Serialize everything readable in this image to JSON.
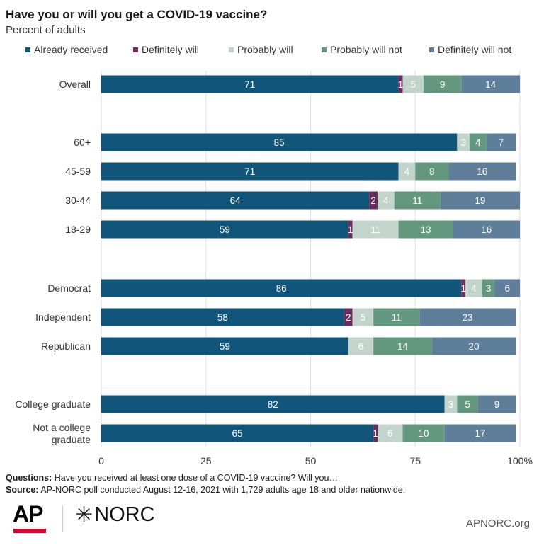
{
  "chart_data": {
    "type": "bar",
    "orientation": "horizontal",
    "stacked": true,
    "title": "Have you or will you get a COVID-19 vaccine?",
    "subtitle": "Percent of adults",
    "legend_position": "top",
    "xlim": [
      0,
      100
    ],
    "x_ticks": [
      "0",
      "25",
      "50",
      "75",
      "100%"
    ],
    "x_tick_values": [
      0,
      25,
      50,
      75,
      100
    ],
    "grid": true,
    "categories": [
      [
        "Overall"
      ],
      [
        "60+"
      ],
      [
        "45-59"
      ],
      [
        "30-44"
      ],
      [
        "18-29"
      ],
      [
        "Democrat"
      ],
      [
        "Independent"
      ],
      [
        "Republican"
      ],
      [
        "College graduate"
      ],
      [
        "Not a college",
        "graduate"
      ]
    ],
    "groups": [
      [
        0
      ],
      [
        1,
        2,
        3,
        4
      ],
      [
        5,
        6,
        7
      ],
      [
        8,
        9
      ]
    ],
    "series": [
      {
        "name": "Already received",
        "color": "#12557a",
        "values": [
          71,
          85,
          71,
          64,
          59,
          86,
          58,
          59,
          82,
          65
        ],
        "labels": [
          "71",
          "85",
          "71",
          "64",
          "59",
          "86",
          "58",
          "59",
          "82",
          "65"
        ]
      },
      {
        "name": "Definitely will",
        "color": "#6b2c5e",
        "values": [
          1,
          0,
          0,
          2,
          1,
          1,
          2,
          0,
          0,
          1
        ],
        "labels": [
          "1",
          "",
          "",
          "2",
          "1",
          "1",
          "2",
          "",
          "",
          "1"
        ]
      },
      {
        "name": "Probably will",
        "color": "#c3d4cd",
        "values": [
          5,
          3,
          4,
          4,
          11,
          4,
          5,
          6,
          3,
          6
        ],
        "labels": [
          "5",
          "3",
          "4",
          "4",
          "11",
          "4",
          "5",
          "6",
          "3",
          "6"
        ]
      },
      {
        "name": "Probably will not",
        "color": "#63987f",
        "values": [
          9,
          4,
          8,
          11,
          13,
          3,
          11,
          14,
          5,
          10
        ],
        "labels": [
          "9",
          "4",
          "8",
          "11",
          "13",
          "3",
          "11",
          "14",
          "5",
          "10"
        ]
      },
      {
        "name": "Definitely will not",
        "color": "#5e7e99",
        "values": [
          14,
          7,
          16,
          19,
          16,
          6,
          23,
          20,
          9,
          17
        ],
        "labels": [
          "14",
          "7",
          "16",
          "19",
          "16",
          "6",
          "23",
          "20",
          "9",
          "17"
        ]
      }
    ]
  },
  "notes": {
    "questions_label": "Questions:",
    "questions_text": " Have you received at least one dose of a COVID-19 vaccine? Will you…",
    "source_label": "Source:",
    "source_text": " AP-NORC poll conducted August 12-16, 2021 with 1,729 adults age 18 and older nationwide."
  },
  "footer": {
    "ap_logo_text": "AP",
    "norc_logo_text": "NORC",
    "url": "APNORC.org"
  },
  "colors": {
    "ap_red": "#e4002b",
    "grid": "#dddddd",
    "label_text": "#333333"
  }
}
